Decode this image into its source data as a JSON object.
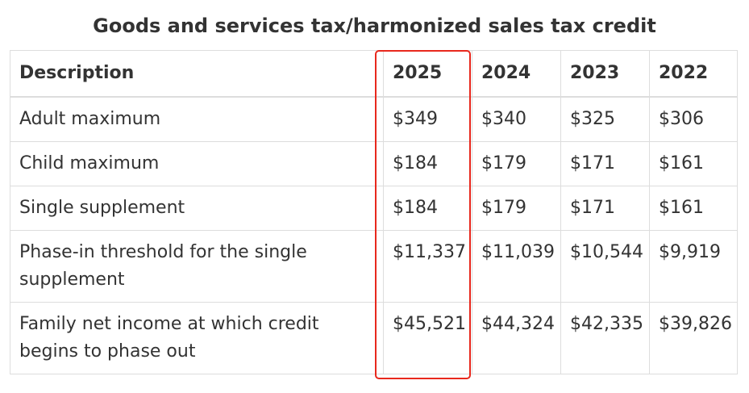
{
  "title": "Goods and services tax/harmonized sales tax credit",
  "table": {
    "headers": [
      "Description",
      "2025",
      "2024",
      "2023",
      "2022"
    ],
    "rows": [
      [
        "Adult maximum",
        "$349",
        "$340",
        "$325",
        "$306"
      ],
      [
        "Child maximum",
        "$184",
        "$179",
        "$171",
        "$161"
      ],
      [
        "Single supplement",
        "$184",
        "$179",
        "$171",
        "$161"
      ],
      [
        "Phase-in threshold for the single supplement",
        "$11,337",
        "$11,039",
        "$10,544",
        "$9,919"
      ],
      [
        "Family net income at which credit begins to phase out",
        "$45,521",
        "$44,324",
        "$42,335",
        "$39,826"
      ]
    ]
  },
  "highlight": {
    "column": "2025",
    "color": "#e8281d"
  }
}
